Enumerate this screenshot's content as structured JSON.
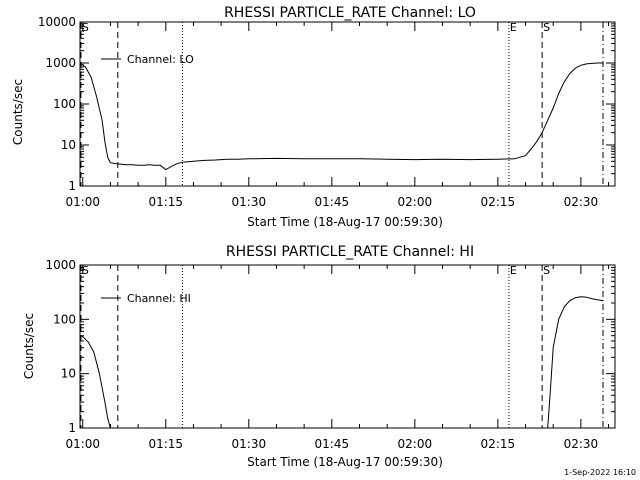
{
  "footer": {
    "timestamp": "1-Sep-2022 16:10"
  },
  "chart_data": [
    {
      "type": "line",
      "title": "RHESSI PARTICLE_RATE Channel: LO",
      "xlabel": "Start Time (18-Aug-17 00:59:30)",
      "ylabel": "Counts/sec",
      "yscale": "log",
      "ylim": [
        1,
        10000
      ],
      "xlim": [
        "00:59:30",
        "02:36:10"
      ],
      "yticks": [
        "1",
        "10",
        "100",
        "1000",
        "10000"
      ],
      "xticks": [
        "01:00",
        "01:15",
        "01:30",
        "01:45",
        "02:00",
        "02:15",
        "02:30"
      ],
      "grid": false,
      "legend_position": "top-left",
      "series": [
        {
          "name": "Channel: LO",
          "color": "#000000",
          "x": [
            "00:59:30",
            "01:00:30",
            "01:01:30",
            "01:02:30",
            "01:03:30",
            "01:04:00",
            "01:04:30",
            "01:05:00",
            "01:06:00",
            "01:07:00",
            "01:08:00",
            "01:09:00",
            "01:10:00",
            "01:11:00",
            "01:12:00",
            "01:13:00",
            "01:14:00",
            "01:15:00",
            "01:16:00",
            "01:17:00",
            "01:18:00",
            "01:20:00",
            "01:22:00",
            "01:24:00",
            "01:26:00",
            "01:28:00",
            "01:30:00",
            "01:35:00",
            "01:40:00",
            "01:45:00",
            "01:50:00",
            "01:55:00",
            "02:00:00",
            "02:05:00",
            "02:10:00",
            "02:15:00",
            "02:18:00",
            "02:20:00",
            "02:21:00",
            "02:22:00",
            "02:23:00",
            "02:24:00",
            "02:25:00",
            "02:26:00",
            "02:27:00",
            "02:28:00",
            "02:29:00",
            "02:30:00",
            "02:31:00",
            "02:32:00",
            "02:33:00",
            "02:34:00"
          ],
          "values": [
            1000,
            800,
            450,
            150,
            40,
            12,
            5,
            3.7,
            3.5,
            3.4,
            3.3,
            3.3,
            3.2,
            3.2,
            3.3,
            3.2,
            3.2,
            2.5,
            3.0,
            3.5,
            3.8,
            4.0,
            4.2,
            4.3,
            4.5,
            4.5,
            4.6,
            4.7,
            4.6,
            4.6,
            4.6,
            4.5,
            4.4,
            4.5,
            4.4,
            4.5,
            4.6,
            5.5,
            8,
            12,
            20,
            40,
            80,
            180,
            350,
            550,
            750,
            880,
            950,
            980,
            1000,
            1000
          ]
        }
      ],
      "markers": [
        {
          "label": "S",
          "time": "00:59:40",
          "style": "dashed"
        },
        {
          "label": "",
          "time": "01:06:20",
          "style": "dashed"
        },
        {
          "label": "",
          "time": "01:18:00",
          "style": "dotted"
        },
        {
          "label": "E",
          "time": "02:17:00",
          "style": "dotted"
        },
        {
          "label": "S",
          "time": "02:23:00",
          "style": "dashed"
        },
        {
          "label": "",
          "time": "02:34:00",
          "style": "dash-dot"
        }
      ]
    },
    {
      "type": "line",
      "title": "RHESSI PARTICLE_RATE Channel: HI",
      "xlabel": "Start Time (18-Aug-17 00:59:30)",
      "ylabel": "Counts/sec",
      "yscale": "log",
      "ylim": [
        1,
        1000
      ],
      "xlim": [
        "00:59:30",
        "02:36:10"
      ],
      "yticks": [
        "1",
        "10",
        "100",
        "1000"
      ],
      "xticks": [
        "01:00",
        "01:15",
        "01:30",
        "01:45",
        "02:00",
        "02:15",
        "02:30"
      ],
      "grid": false,
      "legend_position": "top-left",
      "series": [
        {
          "name": "Channel: HI",
          "color": "#000000",
          "x": [
            "00:59:30",
            "01:00:00",
            "01:01:00",
            "01:02:00",
            "01:03:00",
            "01:04:00",
            "01:04:30",
            "01:05:00",
            "02:24:00",
            "02:24:30",
            "02:25:00",
            "02:26:00",
            "02:27:00",
            "02:28:00",
            "02:29:00",
            "02:30:00",
            "02:31:00",
            "02:32:00",
            "02:33:00",
            "02:34:00"
          ],
          "values": [
            50,
            48,
            38,
            25,
            10,
            3,
            1.5,
            1,
            1,
            5,
            30,
            100,
            170,
            220,
            250,
            260,
            255,
            240,
            230,
            220
          ]
        }
      ],
      "markers": [
        {
          "label": "S",
          "time": "00:59:40",
          "style": "dashed"
        },
        {
          "label": "",
          "time": "01:06:20",
          "style": "dashed"
        },
        {
          "label": "",
          "time": "01:18:00",
          "style": "dotted"
        },
        {
          "label": "E",
          "time": "02:17:00",
          "style": "dotted"
        },
        {
          "label": "S",
          "time": "02:23:00",
          "style": "dashed"
        },
        {
          "label": "",
          "time": "02:34:00",
          "style": "dash-dot"
        }
      ]
    }
  ]
}
